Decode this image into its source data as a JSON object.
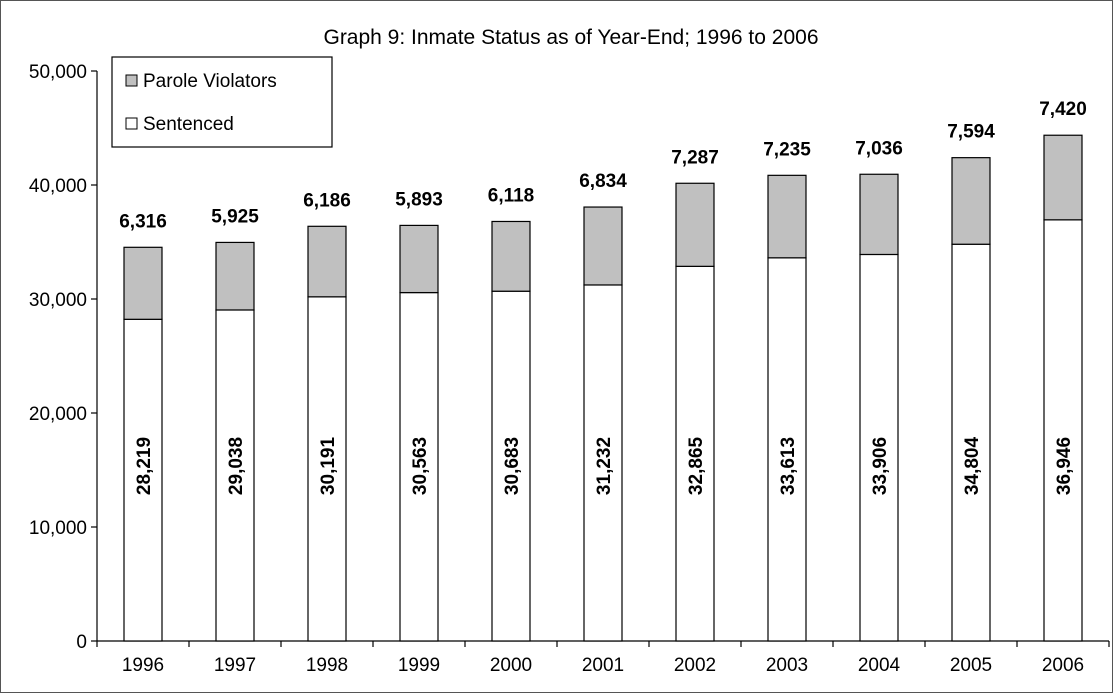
{
  "chart_data": {
    "type": "bar",
    "stacked": true,
    "title": "Graph 9: Inmate Status as of Year-End; 1996 to 2006",
    "xlabel": "",
    "ylabel": "",
    "categories": [
      "1996",
      "1997",
      "1998",
      "1999",
      "2000",
      "2001",
      "2002",
      "2003",
      "2004",
      "2005",
      "2006"
    ],
    "series": [
      {
        "name": "Sentenced",
        "color": "#ffffff",
        "values": [
          28219,
          29038,
          30191,
          30563,
          30683,
          31232,
          32865,
          33613,
          33906,
          34804,
          36946
        ],
        "labels": [
          "28,219",
          "29,038",
          "30,191",
          "30,563",
          "30,683",
          "31,232",
          "32,865",
          "33,613",
          "33,906",
          "34,804",
          "36,946"
        ]
      },
      {
        "name": "Parole Violators",
        "color": "#c0c0c0",
        "values": [
          6316,
          5925,
          6186,
          5893,
          6118,
          6834,
          7287,
          7235,
          7036,
          7594,
          7420
        ],
        "labels": [
          "6,316",
          "5,925",
          "6,186",
          "5,893",
          "6,118",
          "6,834",
          "7,287",
          "7,235",
          "7,036",
          "7,594",
          "7,420"
        ]
      }
    ],
    "ylim": [
      0,
      50000
    ],
    "yticks": [
      0,
      10000,
      20000,
      30000,
      40000,
      50000
    ],
    "ytick_labels": [
      "0",
      "10,000",
      "20,000",
      "30,000",
      "40,000",
      "50,000"
    ],
    "grid": false,
    "legend": {
      "position": "top-left",
      "entries": [
        "Parole Violators",
        "Sentenced"
      ]
    }
  }
}
